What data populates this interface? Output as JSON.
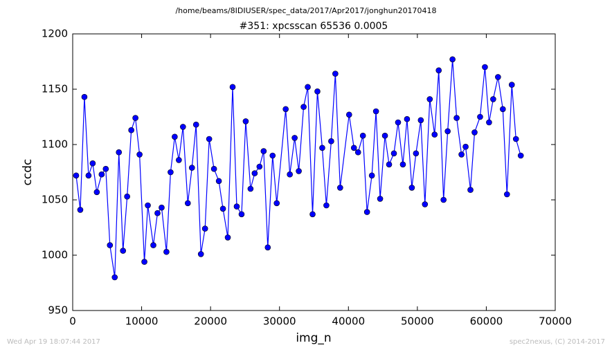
{
  "chart_data": {
    "type": "line",
    "suptitle": "/home/beams/8IDIUSER/spec_data/2017/Apr2017/jonghun20170418",
    "title": "#351: xpcsscan 65536 0.0005",
    "xlabel": "img_n",
    "ylabel": "ccdc",
    "footer_left": "Wed Apr 19 18:07:44 2017",
    "footer_right": "spec2nexus, (C) 2014-2017",
    "xlim": [
      0,
      70000
    ],
    "xticks": [
      0,
      10000,
      20000,
      30000,
      40000,
      50000,
      60000,
      70000
    ],
    "ylim": [
      950,
      1200
    ],
    "yticks": [
      950,
      1000,
      1050,
      1100,
      1150,
      1200
    ],
    "grid": false,
    "series": [
      {
        "color": "#0000ff",
        "x": [
          500,
          1100,
          1700,
          2300,
          2900,
          3500,
          4200,
          4800,
          5400,
          6100,
          6700,
          7300,
          7900,
          8500,
          9100,
          9700,
          10400,
          10900,
          11700,
          12300,
          12900,
          13600,
          14200,
          14800,
          15400,
          16000,
          16700,
          17300,
          17900,
          18600,
          19200,
          19800,
          20500,
          21200,
          21800,
          22500,
          23200,
          23800,
          24500,
          25100,
          25800,
          26400,
          27100,
          27700,
          28300,
          29000,
          29600,
          30900,
          31500,
          32200,
          32800,
          33500,
          34100,
          34800,
          35500,
          36200,
          36800,
          37500,
          38100,
          38800,
          40100,
          40800,
          41400,
          42100,
          42700,
          43400,
          44000,
          44600,
          45300,
          45900,
          46600,
          47200,
          47900,
          48500,
          49200,
          49800,
          50500,
          51100,
          51800,
          52500,
          53100,
          53800,
          54400,
          55100,
          55700,
          56400,
          57000,
          57700,
          58300,
          59100,
          59800,
          60400,
          61000,
          61700,
          62400,
          63000,
          63700,
          64300,
          65000
        ],
        "values": [
          1072,
          1041,
          1143,
          1072,
          1083,
          1057,
          1073,
          1078,
          1009,
          980,
          1093,
          1004,
          1053,
          1113,
          1124,
          1091,
          994,
          1045,
          1009,
          1038,
          1043,
          1003,
          1075,
          1107,
          1086,
          1116,
          1047,
          1079,
          1118,
          1001,
          1024,
          1105,
          1078,
          1067,
          1042,
          1016,
          1152,
          1044,
          1037,
          1121,
          1060,
          1074,
          1080,
          1094,
          1007,
          1090,
          1047,
          1132,
          1073,
          1106,
          1076,
          1134,
          1152,
          1037,
          1148,
          1097,
          1045,
          1103,
          1164,
          1061,
          1127,
          1097,
          1093,
          1108,
          1039,
          1072,
          1130,
          1051,
          1108,
          1082,
          1092,
          1120,
          1082,
          1123,
          1061,
          1092,
          1122,
          1046,
          1141,
          1109,
          1167,
          1050,
          1112,
          1177,
          1124,
          1091,
          1098,
          1059,
          1111,
          1125,
          1170,
          1120,
          1141,
          1161,
          1132,
          1055,
          1154,
          1105,
          1090
        ]
      }
    ]
  }
}
